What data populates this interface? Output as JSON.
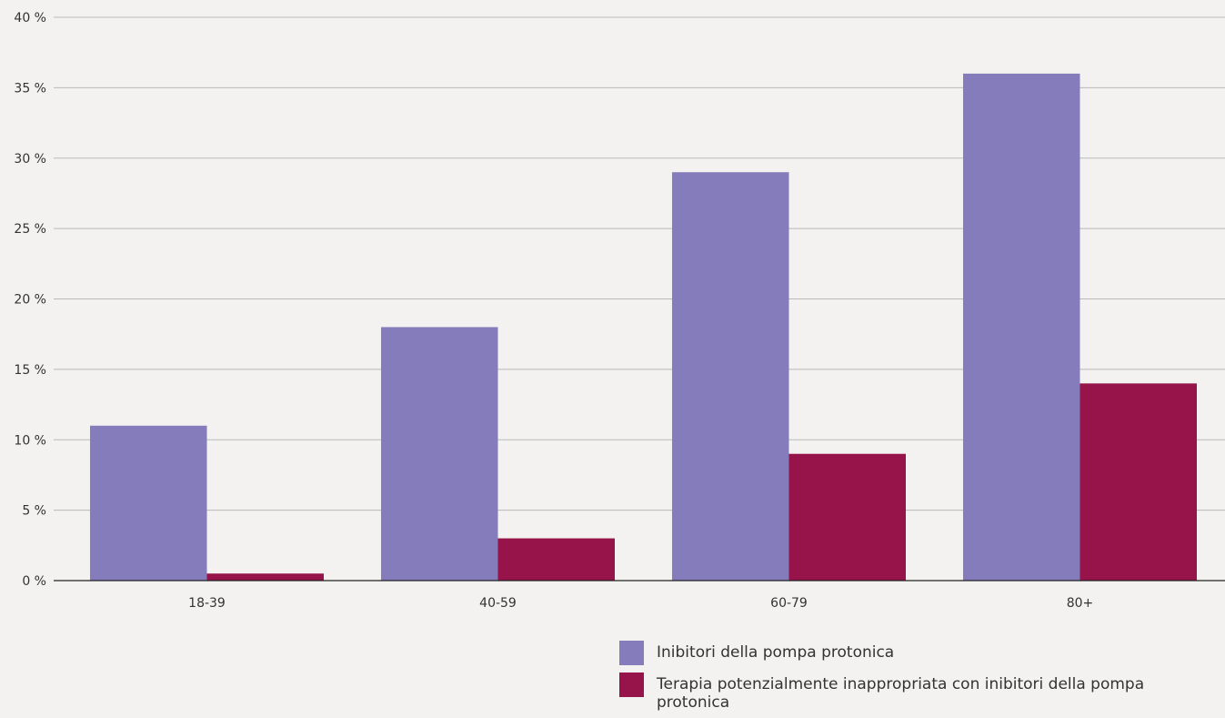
{
  "colors": {
    "series1": "#857cbc",
    "series2": "#97144a",
    "background": "#f3f2f0",
    "grid": "#b9b9b9",
    "axis": "#222222",
    "text": "#333333"
  },
  "chart_data": {
    "type": "bar",
    "title": "",
    "xlabel": "",
    "ylabel": "",
    "ylim": [
      0,
      40
    ],
    "yticks": [
      0,
      5,
      10,
      15,
      20,
      25,
      30,
      35,
      40
    ],
    "ytick_labels": [
      "0 %",
      "5 %",
      "10 %",
      "15 %",
      "20 %",
      "25 %",
      "30 %",
      "35 %",
      "40 %"
    ],
    "categories": [
      "18-39",
      "40-59",
      "60-79",
      "80+"
    ],
    "series": [
      {
        "name": "Inibitori della pompa protonica",
        "values": [
          11,
          18,
          29,
          36
        ]
      },
      {
        "name": "Terapia potenzialmente inappropriata con inibitori della pompa protonica",
        "values": [
          0.5,
          3,
          9,
          14
        ]
      }
    ],
    "grid": true,
    "legend_position": "bottom-right"
  }
}
